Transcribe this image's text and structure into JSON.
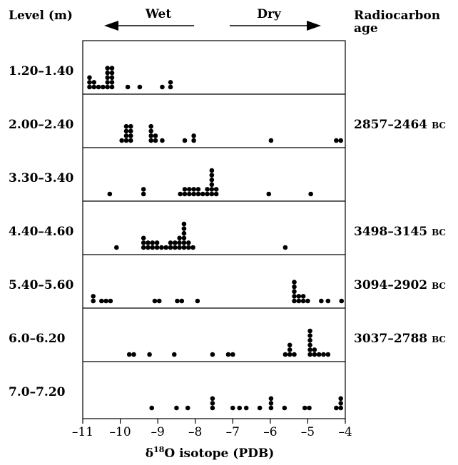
{
  "chart_data": {
    "type": "scatter",
    "title": "",
    "xlabel": "δ18O isotope (PDB)",
    "xlabel_prefix": "δ",
    "xlabel_sup": "18",
    "xlabel_suffix": "O isotope (PDB)",
    "xlim": [
      -11,
      -4
    ],
    "xticks": [
      -11,
      -10,
      -9,
      -8,
      -7,
      -6,
      -5,
      -4
    ],
    "xtick_labels": [
      "–11",
      "–10",
      "–9",
      "–8",
      "–7",
      "–6",
      "–5",
      "–4"
    ],
    "left_header": "Level (m)",
    "right_header_line1": "Radiocarbon",
    "right_header_line2": "age",
    "wet_label": "Wet",
    "dry_label": "Dry",
    "bc_suffix": "BC",
    "stacking": "dot plot: repeated values stacked vertically",
    "panels": [
      {
        "level": "1.20–1.40",
        "age": "",
        "values": [
          -10.82,
          -10.82,
          -10.82,
          -10.7,
          -10.7,
          -10.58,
          -10.46,
          -10.34,
          -10.34,
          -10.34,
          -10.34,
          -10.34,
          -10.22,
          -10.22,
          -10.22,
          -10.22,
          -10.22,
          -9.8,
          -9.48,
          -8.88,
          -8.66,
          -8.66
        ]
      },
      {
        "level": "2.00–2.40",
        "age": "2857–2464",
        "values": [
          -9.96,
          -9.84,
          -9.84,
          -9.84,
          -9.84,
          -9.72,
          -9.72,
          -9.72,
          -9.72,
          -9.18,
          -9.18,
          -9.18,
          -9.18,
          -9.06,
          -9.06,
          -8.88,
          -8.28,
          -8.04,
          -8.04,
          -5.98,
          -4.24,
          -4.12
        ]
      },
      {
        "level": "3.30–3.40",
        "age": "",
        "values": [
          -10.28,
          -9.38,
          -9.38,
          -8.4,
          -8.28,
          -8.28,
          -8.16,
          -8.16,
          -8.04,
          -8.04,
          -7.92,
          -7.92,
          -7.8,
          -7.68,
          -7.68,
          -7.56,
          -7.56,
          -7.56,
          -7.56,
          -7.56,
          -7.56,
          -7.44,
          -7.44,
          -6.04,
          -4.92
        ]
      },
      {
        "level": "4.40–4.60",
        "age": "3498–3145",
        "values": [
          -10.1,
          -9.38,
          -9.38,
          -9.38,
          -9.26,
          -9.26,
          -9.14,
          -9.14,
          -9.02,
          -9.02,
          -8.9,
          -8.78,
          -8.66,
          -8.66,
          -8.54,
          -8.54,
          -8.42,
          -8.42,
          -8.42,
          -8.3,
          -8.3,
          -8.3,
          -8.3,
          -8.3,
          -8.3,
          -8.18,
          -8.18,
          -8.06,
          -5.6
        ]
      },
      {
        "level": "5.40–5.60",
        "age": "3094–2902",
        "values": [
          -10.72,
          -10.72,
          -10.5,
          -10.38,
          -10.26,
          -9.08,
          -8.96,
          -8.48,
          -8.36,
          -7.94,
          -5.36,
          -5.36,
          -5.36,
          -5.36,
          -5.36,
          -5.24,
          -5.24,
          -5.12,
          -5.12,
          -5.0,
          -4.64,
          -4.46,
          -4.1
        ]
      },
      {
        "level": "6.0–6.20",
        "age": "3037–2788",
        "values": [
          -9.76,
          -9.64,
          -9.22,
          -8.56,
          -7.54,
          -7.12,
          -7.0,
          -5.6,
          -5.48,
          -5.48,
          -5.48,
          -5.36,
          -4.94,
          -4.94,
          -4.94,
          -4.94,
          -4.94,
          -4.94,
          -4.82,
          -4.82,
          -4.7,
          -4.58,
          -4.46
        ]
      },
      {
        "level": "7.0–7.20",
        "age": "",
        "values": [
          -9.16,
          -8.5,
          -8.2,
          -7.54,
          -7.54,
          -7.54,
          -7.0,
          -6.82,
          -6.64,
          -6.28,
          -5.98,
          -5.98,
          -5.98,
          -5.62,
          -5.08,
          -4.96,
          -4.24,
          -4.12,
          -4.12,
          -4.12
        ]
      }
    ]
  }
}
